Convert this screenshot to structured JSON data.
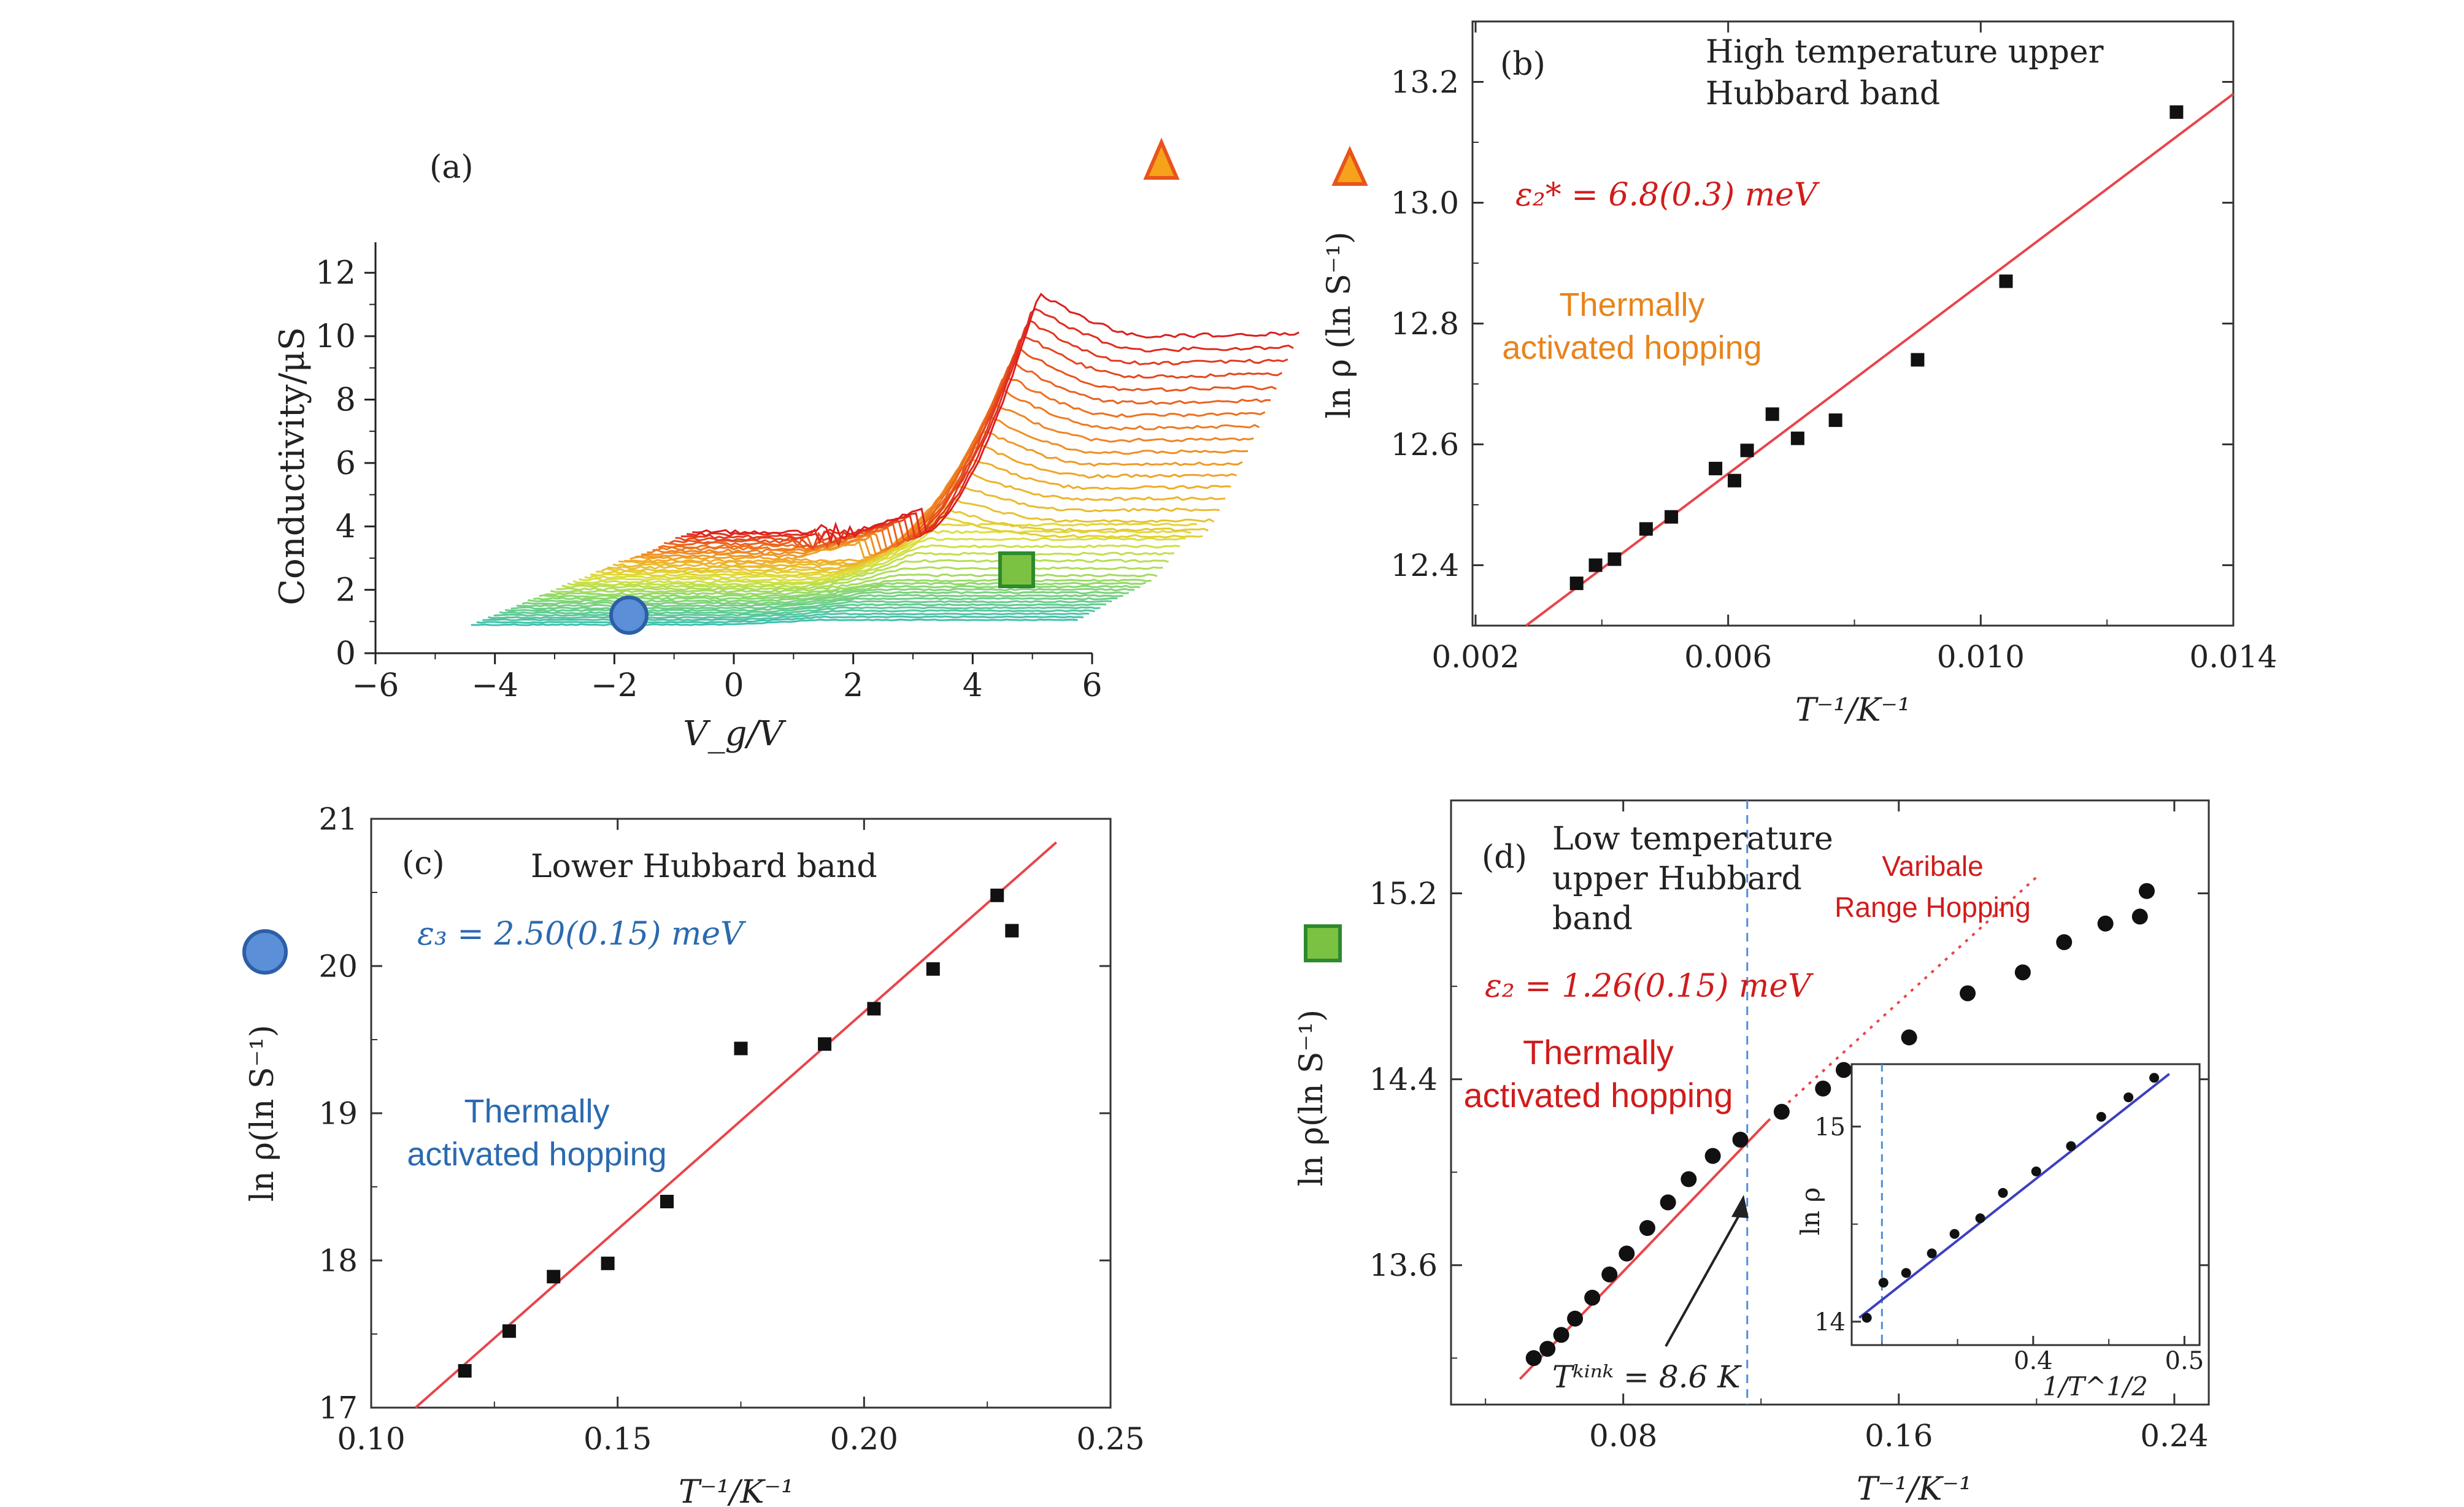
{
  "panels": {
    "a": {
      "panel_label": "(a)",
      "ylabel": "Conductivity/μS",
      "xlabel": "V_g/V",
      "x_ticks": [
        "−6",
        "−4",
        "−2",
        "0",
        "2",
        "4",
        "6"
      ],
      "y_ticks": [
        "0",
        "2",
        "4",
        "6",
        "8",
        "10",
        "12"
      ]
    },
    "b": {
      "panel_label": "(b)",
      "title_line1": "High temperature upper",
      "title_line2": "Hubbard band",
      "energy": "ε₂* = 6.8(0.3) meV",
      "annot_line1": "Thermally",
      "annot_line2": "activated hopping",
      "ylabel": "ln ρ (ln S⁻¹)",
      "xlabel": "T⁻¹/K⁻¹",
      "x_ticks": [
        "0.002",
        "0.006",
        "0.010",
        "0.014"
      ],
      "y_ticks": [
        "12.4",
        "12.6",
        "12.8",
        "13.0",
        "13.2"
      ]
    },
    "c": {
      "panel_label": "(c)",
      "title": "Lower Hubbard band",
      "energy": "ε₃ = 2.50(0.15) meV",
      "annot_line1": "Thermally",
      "annot_line2": "activated hopping",
      "ylabel": "ln ρ(ln S⁻¹)",
      "xlabel": "T⁻¹/K⁻¹",
      "x_ticks": [
        "0.10",
        "0.15",
        "0.20",
        "0.25"
      ],
      "y_ticks": [
        "17",
        "18",
        "19",
        "20",
        "21"
      ]
    },
    "d": {
      "panel_label": "(d)",
      "title_line1": "Low temperature",
      "title_line2": "upper Hubbard",
      "title_line3": "band",
      "vrh_line1": "Varibale",
      "vrh_line2": "Range Hopping",
      "energy": "ε₂ = 1.26(0.15) meV",
      "annot_line1": "Thermally",
      "annot_line2": "activated hopping",
      "kink": "Tᵏⁱⁿᵏ = 8.6 K",
      "ylabel": "ln ρ(ln S⁻¹)",
      "xlabel": "T⁻¹/K⁻¹",
      "x_ticks": [
        "0.08",
        "0.16",
        "0.24"
      ],
      "y_ticks": [
        "13.6",
        "14.4",
        "15.2"
      ],
      "inset": {
        "ylabel": "ln ρ",
        "xlabel": "1/T^1/2",
        "x_ticks": [
          "0.4",
          "0.5"
        ],
        "y_ticks": [
          "14",
          "15"
        ]
      }
    }
  },
  "colors": {
    "fit_red": "#e8454a",
    "fit_blue": "#3d3fbf",
    "text_red": "#d01c1c",
    "text_orange": "#e8841c",
    "text_blue": "#2a6ab0",
    "marker_triangle": "#f7a21b",
    "marker_circle": "#5b8fd8",
    "marker_square": "#7cc242"
  },
  "chart_data": [
    {
      "panel": "a",
      "type": "line",
      "description_series": "family of conductivity vs gate voltage curves, colored red (top) to cyan (bottom)",
      "xlabel": "V_g/V",
      "ylabel": "Conductivity/μS",
      "xlim": [
        -6,
        6
      ],
      "ylim": [
        0,
        13
      ],
      "num_curves": 40
    },
    {
      "panel": "b",
      "type": "scatter",
      "xlabel": "T⁻¹/K⁻¹",
      "ylabel": "ln ρ (ln S⁻¹)",
      "xlim": [
        0.002,
        0.014
      ],
      "ylim": [
        12.3,
        13.3
      ],
      "x": [
        0.0036,
        0.0039,
        0.0042,
        0.0047,
        0.0051,
        0.0058,
        0.0061,
        0.0063,
        0.0067,
        0.0071,
        0.0077,
        0.009,
        0.0104,
        0.0131
      ],
      "y": [
        12.37,
        12.4,
        12.41,
        12.46,
        12.48,
        12.56,
        12.54,
        12.59,
        12.65,
        12.61,
        12.64,
        12.74,
        12.87,
        13.15
      ],
      "fit": {
        "x": [
          0.0028,
          0.014
        ],
        "y": [
          12.3,
          13.18
        ]
      }
    },
    {
      "panel": "c",
      "type": "scatter",
      "xlabel": "T⁻¹/K⁻¹",
      "ylabel": "ln ρ(ln S⁻¹)",
      "xlim": [
        0.1,
        0.25
      ],
      "ylim": [
        17,
        21
      ],
      "x": [
        0.119,
        0.128,
        0.137,
        0.148,
        0.16,
        0.175,
        0.192,
        0.202,
        0.214,
        0.227,
        0.23
      ],
      "y": [
        17.25,
        17.52,
        17.89,
        17.98,
        18.4,
        19.44,
        19.47,
        19.71,
        19.98,
        20.48,
        20.24
      ],
      "fit": {
        "x": [
          0.109,
          0.239
        ],
        "y": [
          17.0,
          20.84
        ]
      }
    },
    {
      "panel": "d",
      "type": "scatter",
      "xlabel": "T⁻¹/K⁻¹",
      "ylabel": "ln ρ(ln S⁻¹)",
      "xlim": [
        0.03,
        0.25
      ],
      "ylim": [
        13.0,
        15.6
      ],
      "x": [
        0.054,
        0.058,
        0.062,
        0.066,
        0.071,
        0.076,
        0.081,
        0.087,
        0.093,
        0.099,
        0.106,
        0.114,
        0.126,
        0.138,
        0.144,
        0.163,
        0.18,
        0.196,
        0.208,
        0.22,
        0.23,
        0.232
      ],
      "y": [
        13.2,
        13.24,
        13.3,
        13.37,
        13.46,
        13.56,
        13.65,
        13.76,
        13.87,
        13.97,
        14.07,
        14.14,
        14.26,
        14.36,
        14.44,
        14.58,
        14.77,
        14.86,
        14.99,
        15.07,
        15.1,
        15.21
      ],
      "fit_red": {
        "x": [
          0.05,
          0.122
        ],
        "y": [
          13.11,
          14.22
        ]
      },
      "vrh_dotted": {
        "x": [
          0.122,
          0.2
        ],
        "y": [
          14.22,
          15.27
        ]
      },
      "kink_x": 0.116,
      "inset": {
        "type": "scatter",
        "xlim": [
          0.28,
          0.51
        ],
        "ylim": [
          13.88,
          15.32
        ],
        "x": [
          0.29,
          0.301,
          0.316,
          0.333,
          0.348,
          0.365,
          0.38,
          0.402,
          0.425,
          0.445,
          0.463,
          0.48
        ],
        "y": [
          14.02,
          14.2,
          14.25,
          14.35,
          14.45,
          14.53,
          14.66,
          14.77,
          14.9,
          15.05,
          15.15,
          15.25
        ],
        "fit": {
          "x": [
            0.285,
            0.49
          ],
          "y": [
            14.02,
            15.27
          ]
        },
        "dashed_x": 0.3
      }
    }
  ]
}
